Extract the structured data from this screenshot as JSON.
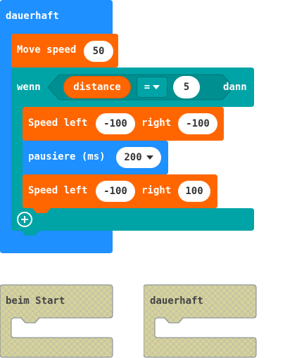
{
  "forever_block": {
    "label": "dauerhaft",
    "color": "#1e90ff"
  },
  "move_speed_block": {
    "label": "Move speed",
    "value": "50",
    "color": "#ff6600"
  },
  "if_block": {
    "label_if": "wenn",
    "label_then": "dann",
    "condition_variable": "distance",
    "operator": "=",
    "compare_value": "5",
    "color": "#00a4a6",
    "add_icon": "plus-circle-icon"
  },
  "speed_block_1": {
    "label_left": "Speed left",
    "left_value": "-100",
    "label_right": "right",
    "right_value": "-100"
  },
  "pause_block": {
    "label": "pausiere (ms)",
    "value": "200"
  },
  "speed_block_2": {
    "label_left": "Speed left",
    "left_value": "-100",
    "label_right": "right",
    "right_value": "100"
  },
  "ghost_blocks": [
    {
      "label": "beim Start"
    },
    {
      "label": "dauerhaft"
    }
  ]
}
